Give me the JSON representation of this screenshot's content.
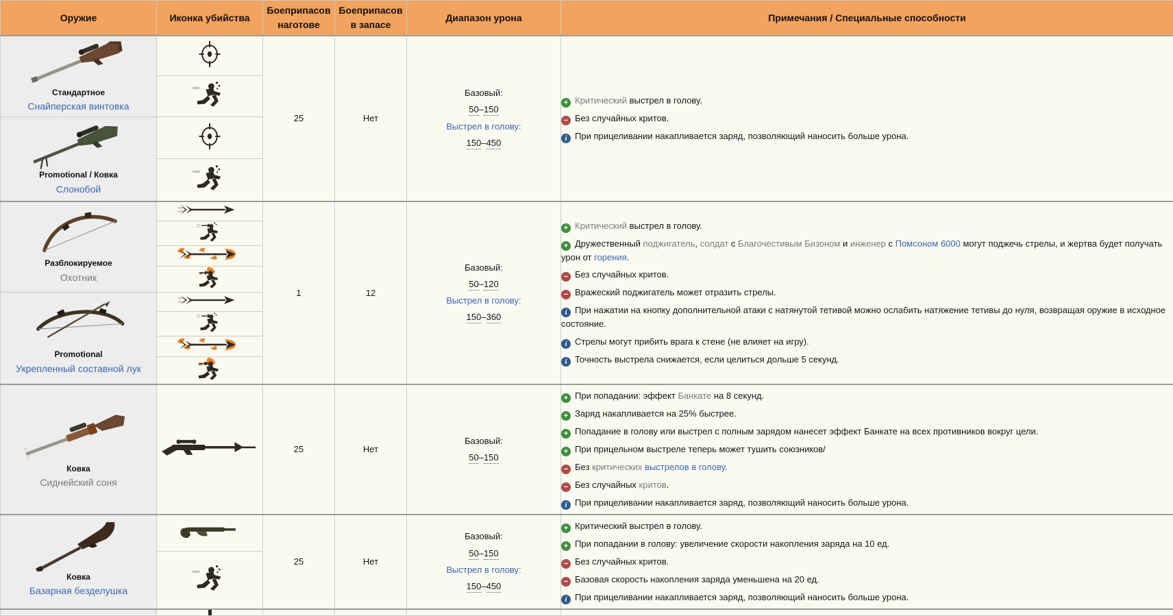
{
  "colors": {
    "header_bg": "#F2A35D",
    "link_blue": "#3A66B5",
    "link_grey": "#7A7A7A",
    "plus_green": "#3F8F3D",
    "minus_red": "#B14A48",
    "info_blue": "#2F5A8B",
    "weapon_cell_bg": "#EDEDED",
    "cell_bg": "#FBFAF1"
  },
  "table": {
    "columns": [
      "Оружие",
      "Иконка убийства",
      "Боеприпасов наготове",
      "Боеприпасов в запасе",
      "Диапазон урона",
      "Примечания / Специальные способности"
    ]
  },
  "rows": [
    {
      "weapons": [
        {
          "type": "Стандартное",
          "name": "Снайперская винтовка",
          "name_style": "blue",
          "image": "sniper-rifle-image"
        },
        {
          "type": "Promotional / Ковка",
          "name": "Слонобой",
          "name_style": "blue",
          "image": "machina-rifle-image"
        }
      ],
      "kill_icons": [
        "scope-crosshair-kill-icon",
        "headshot-kill-icon",
        "scope-crosshair-kill-icon",
        "headshot-kill-icon"
      ],
      "ammo_loaded": "25",
      "ammo_carried": "Нет",
      "damage": {
        "base_label": "Базовый:",
        "base_low": "50",
        "dash": "–",
        "base_high": "150",
        "headshot_label": "Выстрел в голову:",
        "headshot_low": "150",
        "headshot_high": "450"
      },
      "notes": [
        {
          "icon": "plus",
          "segments": [
            {
              "t": "Критический",
              "c": "grey"
            },
            {
              "t": " выстрел в голову.",
              "c": "normal"
            }
          ]
        },
        {
          "icon": "minus",
          "segments": [
            {
              "t": "Без случайных критов.",
              "c": "normal"
            }
          ]
        },
        {
          "icon": "info",
          "segments": [
            {
              "t": "При прицеливании накапливается заряд, позволяющий наносить больше урона.",
              "c": "normal"
            }
          ]
        }
      ]
    },
    {
      "weapons": [
        {
          "type": "Разблокируемое",
          "name": "Охотник",
          "name_style": "grey",
          "image": "huntsman-bow-image"
        },
        {
          "type": "Promotional",
          "name": "Укрепленный составной лук",
          "name_style": "blue",
          "image": "fortified-compound-bow-image"
        }
      ],
      "kill_icons": [
        "arrow-kill-icon",
        "arrow-headshot-kill-icon",
        "flaming-arrow-kill-icon",
        "flaming-arrow-headshot-kill-icon",
        "arrow-kill-icon",
        "arrow-headshot-kill-icon",
        "flaming-arrow-kill-icon",
        "flaming-arrow-headshot-kill-icon"
      ],
      "ammo_loaded": "1",
      "ammo_carried": "12",
      "damage": {
        "base_label": "Базовый:",
        "base_low": "50",
        "dash": "–",
        "base_high": "120",
        "headshot_label": "Выстрел в голову:",
        "headshot_low": "150",
        "headshot_high": "360"
      },
      "notes": [
        {
          "icon": "plus",
          "segments": [
            {
              "t": "Критический",
              "c": "grey"
            },
            {
              "t": " выстрел в голову.",
              "c": "normal"
            }
          ]
        },
        {
          "icon": "plus",
          "segments": [
            {
              "t": "Дружественный ",
              "c": "normal"
            },
            {
              "t": "поджигатель",
              "c": "grey"
            },
            {
              "t": ", ",
              "c": "normal"
            },
            {
              "t": "солдат",
              "c": "grey"
            },
            {
              "t": " с ",
              "c": "normal"
            },
            {
              "t": "Благочестивым Бизоном",
              "c": "grey"
            },
            {
              "t": " и ",
              "c": "normal"
            },
            {
              "t": "инженер",
              "c": "grey"
            },
            {
              "t": " с ",
              "c": "normal"
            },
            {
              "t": "Помсоном 6000",
              "c": "blue"
            },
            {
              "t": " могут поджечь стрелы, и жертва будет получать урон от ",
              "c": "normal"
            },
            {
              "t": "горения",
              "c": "blue"
            },
            {
              "t": ".",
              "c": "normal"
            }
          ]
        },
        {
          "icon": "minus",
          "segments": [
            {
              "t": "Без случайных критов.",
              "c": "normal"
            }
          ]
        },
        {
          "icon": "minus",
          "segments": [
            {
              "t": "Вражеский поджигатель может отразить стрелы.",
              "c": "normal"
            }
          ]
        },
        {
          "icon": "info",
          "segments": [
            {
              "t": "При нажатии на кнопку дополнительной атаки с натянутой тетивой можно ослабить натяжение тетивы до нуля, возвращая оружие в исходное состояние.",
              "c": "normal"
            }
          ]
        },
        {
          "icon": "info",
          "segments": [
            {
              "t": "Стрелы могут прибить врага к стене (не влияет на игру).",
              "c": "normal"
            }
          ]
        },
        {
          "icon": "info",
          "segments": [
            {
              "t": "Точность выстрела снижается, если целиться дольше 5 секунд.",
              "c": "normal"
            }
          ]
        }
      ]
    },
    {
      "weapons": [
        {
          "type": "Ковка",
          "name": "Сиднейский соня",
          "name_style": "grey",
          "image": "sydney-sleeper-rifle-image"
        }
      ],
      "kill_icons": [
        "sydney-sleeper-kill-icon"
      ],
      "ammo_loaded": "25",
      "ammo_carried": "Нет",
      "damage": {
        "base_label": "Базовый:",
        "base_low": "50",
        "dash": "–",
        "base_high": "150"
      },
      "notes": [
        {
          "icon": "plus",
          "segments": [
            {
              "t": "При попадании: эффект ",
              "c": "normal"
            },
            {
              "t": "Банкате",
              "c": "grey"
            },
            {
              "t": " на 8 секунд.",
              "c": "normal"
            }
          ]
        },
        {
          "icon": "plus",
          "segments": [
            {
              "t": "Заряд накапливается на 25% быстрее.",
              "c": "normal"
            }
          ]
        },
        {
          "icon": "plus",
          "segments": [
            {
              "t": "Попадание в голову или выстрел с полным зарядом нанесет эффект Банкате на всех противников вокруг цели.",
              "c": "normal"
            }
          ]
        },
        {
          "icon": "plus",
          "segments": [
            {
              "t": "При прицельном выстреле теперь может тушить союзников/",
              "c": "normal"
            }
          ]
        },
        {
          "icon": "minus",
          "segments": [
            {
              "t": "Без ",
              "c": "normal"
            },
            {
              "t": "критических",
              "c": "grey"
            },
            {
              "t": " ",
              "c": "normal"
            },
            {
              "t": "выстрелов в голову",
              "c": "blue"
            },
            {
              "t": ".",
              "c": "normal"
            }
          ]
        },
        {
          "icon": "minus",
          "segments": [
            {
              "t": "Без случайных ",
              "c": "normal"
            },
            {
              "t": "критов",
              "c": "grey"
            },
            {
              "t": ".",
              "c": "normal"
            }
          ]
        },
        {
          "icon": "info",
          "segments": [
            {
              "t": "При прицеливании накапливается заряд, позволяющий наносить больше урона.",
              "c": "normal"
            }
          ]
        }
      ]
    },
    {
      "weapons": [
        {
          "type": "Ковка",
          "name": "Базарная безделушка",
          "name_style": "blue",
          "image": "bazaar-bargain-rifle-image"
        }
      ],
      "kill_icons": [
        "musket-kill-icon",
        "headshot-kill-icon"
      ],
      "ammo_loaded": "25",
      "ammo_carried": "Нет",
      "damage": {
        "base_label": "Базовый:",
        "base_low": "50",
        "dash": "–",
        "base_high": "150",
        "headshot_label": "Выстрел в голову:",
        "headshot_low": "150",
        "headshot_high": "450"
      },
      "notes": [
        {
          "icon": "plus",
          "segments": [
            {
              "t": "Критический выстрел в голову.",
              "c": "normal"
            }
          ]
        },
        {
          "icon": "plus",
          "segments": [
            {
              "t": "При попадании в голову: увеличение скорости накопления заряда на 10 ед.",
              "c": "normal"
            }
          ]
        },
        {
          "icon": "minus",
          "segments": [
            {
              "t": "Без случайных критов.",
              "c": "normal"
            }
          ]
        },
        {
          "icon": "minus",
          "segments": [
            {
              "t": "Базовая скорость накопления заряда уменьшена на 20 ед.",
              "c": "normal"
            }
          ]
        },
        {
          "icon": "info",
          "segments": [
            {
              "t": "При прицеливании накапливается заряд, позволяющий наносить больше урона.",
              "c": "normal"
            }
          ]
        }
      ]
    }
  ]
}
